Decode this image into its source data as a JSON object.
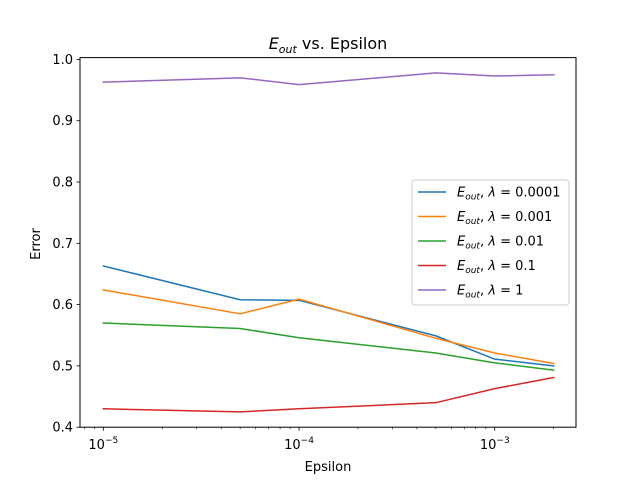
{
  "chart_data": {
    "type": "line",
    "title": "E_out vs. Epsilon",
    "title_main": "E",
    "title_sub": "out",
    "title_rest": " vs. Epsilon",
    "xlabel": "Epsilon",
    "ylabel": "Error",
    "xscale": "log",
    "xlim": [
      7.6e-06,
      0.0026
    ],
    "ylim": [
      0.4,
      1.003
    ],
    "x": [
      1e-05,
      5e-05,
      0.0001,
      0.0005,
      0.001,
      0.002
    ],
    "x_ticks": [
      {
        "value": 1e-05,
        "mantissa": "10",
        "exponent": "−5"
      },
      {
        "value": 0.0001,
        "mantissa": "10",
        "exponent": "−4"
      },
      {
        "value": 0.001,
        "mantissa": "10",
        "exponent": "−3"
      }
    ],
    "y_ticks": [
      {
        "value": 0.4,
        "label": "0.4"
      },
      {
        "value": 0.5,
        "label": "0.5"
      },
      {
        "value": 0.6,
        "label": "0.6"
      },
      {
        "value": 0.7,
        "label": "0.7"
      },
      {
        "value": 0.8,
        "label": "0.8"
      },
      {
        "value": 0.9,
        "label": "0.9"
      },
      {
        "value": 1.0,
        "label": "1.0"
      }
    ],
    "legend_position": "center-right",
    "grid": false,
    "series": [
      {
        "name": "E_out, λ = 0.0001",
        "lambda_text": "0.0001",
        "color": "#1f77b4",
        "values": [
          0.663,
          0.608,
          0.607,
          0.549,
          0.511,
          0.5
        ]
      },
      {
        "name": "E_out, λ = 0.001",
        "lambda_text": "0.001",
        "color": "#ff7f0e",
        "values": [
          0.624,
          0.585,
          0.609,
          0.545,
          0.521,
          0.504
        ]
      },
      {
        "name": "E_out, λ = 0.01",
        "lambda_text": "0.01",
        "color": "#2ca02c",
        "values": [
          0.57,
          0.561,
          0.546,
          0.521,
          0.505,
          0.493
        ]
      },
      {
        "name": "E_out, λ = 0.1",
        "lambda_text": "0.1",
        "color": "#d62728",
        "values": [
          0.43,
          0.425,
          0.43,
          0.44,
          0.463,
          0.481
        ]
      },
      {
        "name": "E_out, λ = 1",
        "lambda_text": "1",
        "color": "#9467bd",
        "values": [
          0.963,
          0.97,
          0.959,
          0.978,
          0.973,
          0.975
        ]
      }
    ]
  }
}
